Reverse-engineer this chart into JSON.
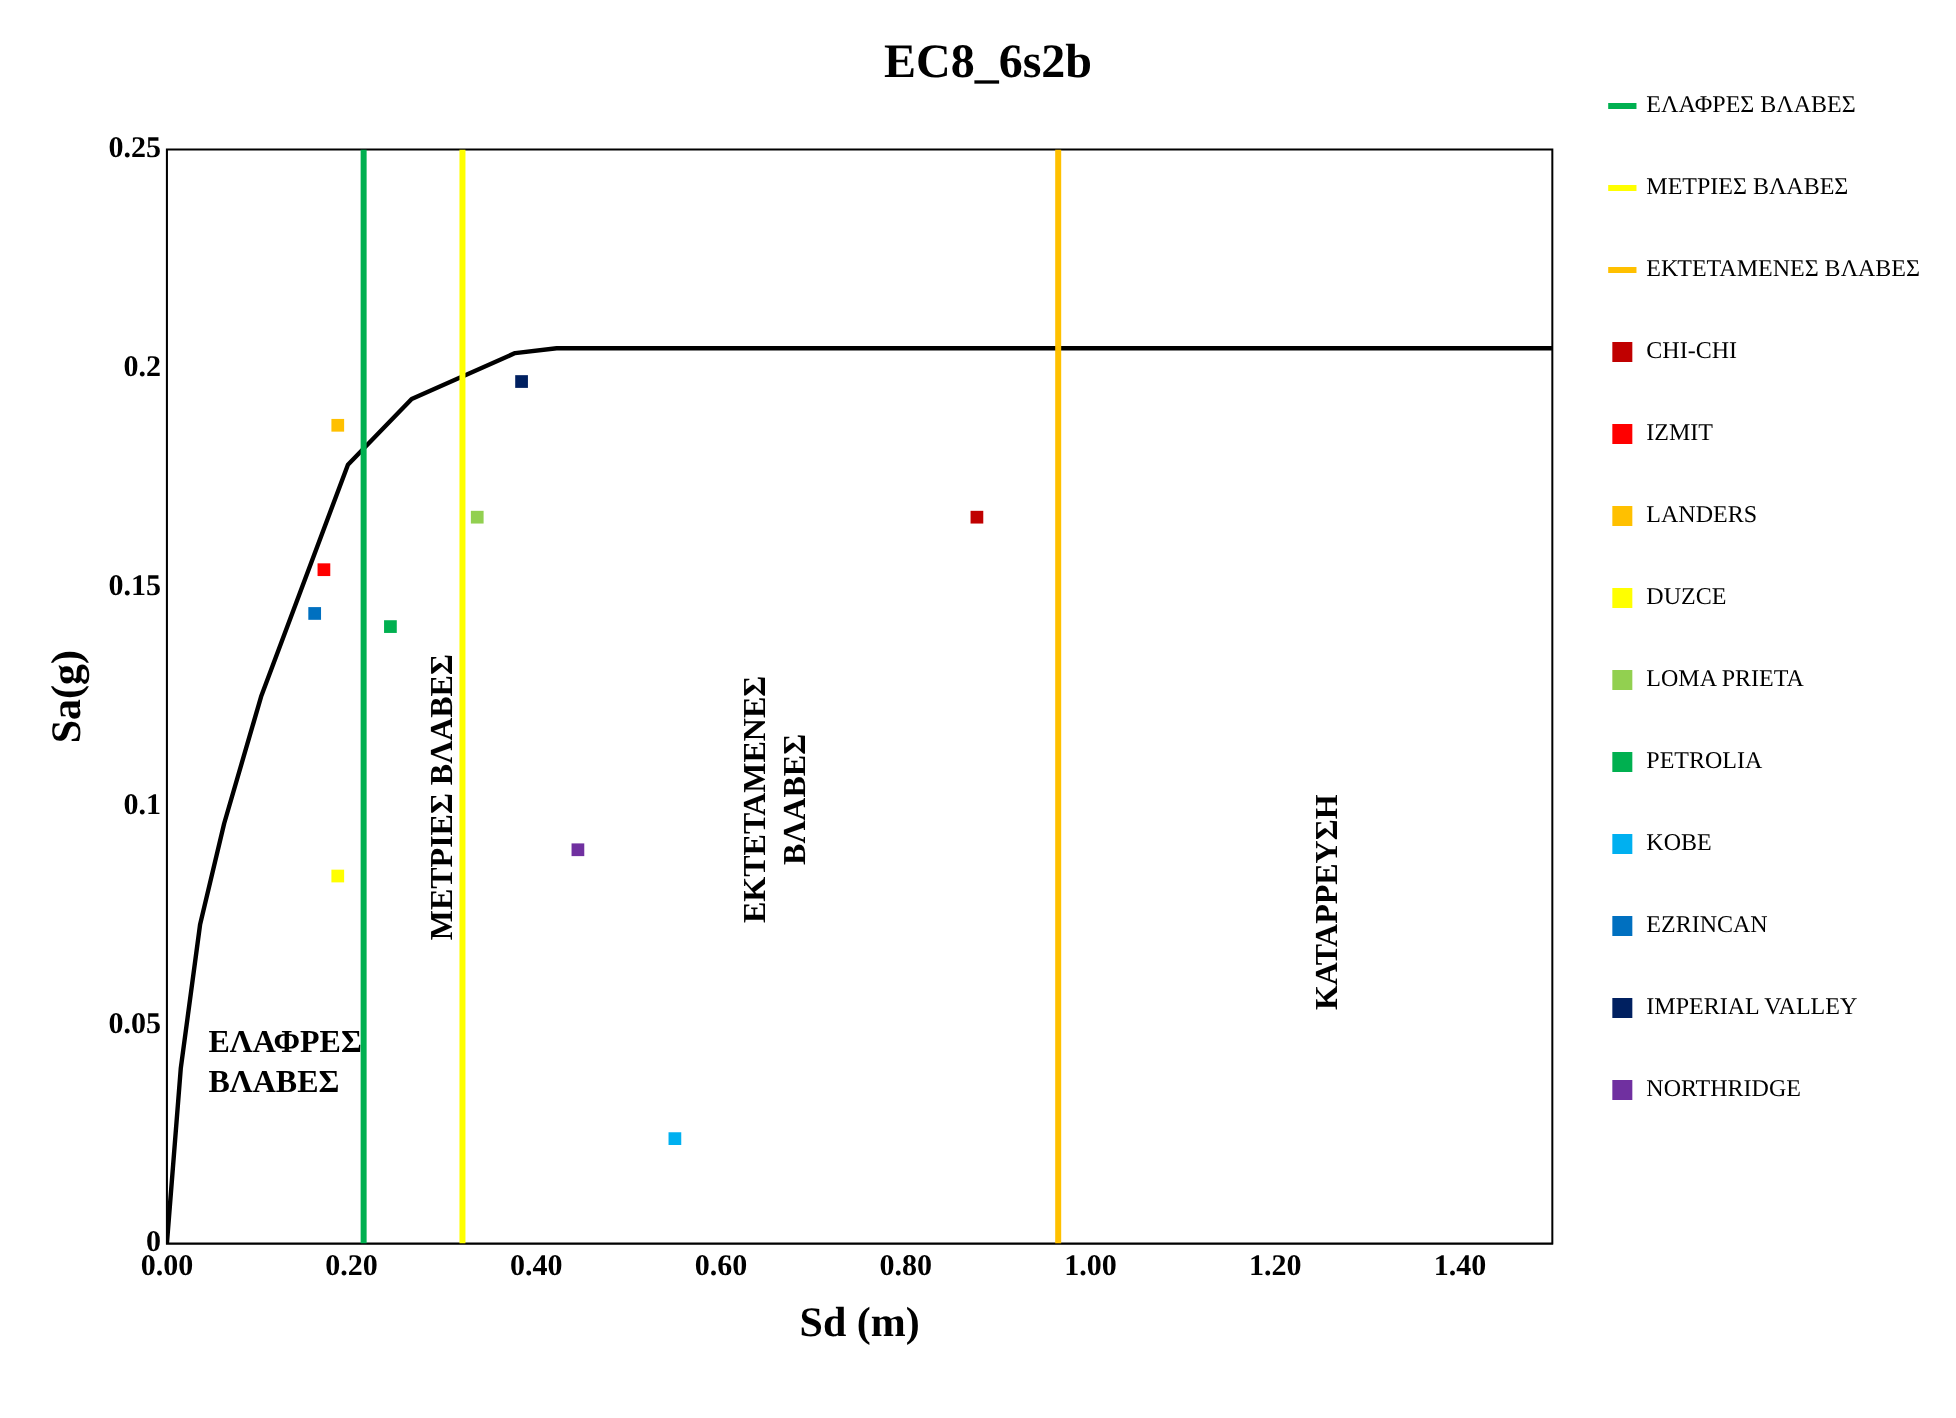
{
  "chart_data": {
    "type": "scatter",
    "title": "EC8_6s2b",
    "xlabel": "Sd (m)",
    "ylabel": "Sa(g)",
    "xlim": [
      0,
      1.5
    ],
    "ylim": [
      0,
      0.25
    ],
    "xticks": [
      {
        "value": 0,
        "label": "0.00"
      },
      {
        "value": 0.2,
        "label": "0.20"
      },
      {
        "value": 0.4,
        "label": "0.40"
      },
      {
        "value": 0.6,
        "label": "0.60"
      },
      {
        "value": 0.8,
        "label": "0.80"
      },
      {
        "value": 1,
        "label": "1.00"
      },
      {
        "value": 1.2,
        "label": "1.20"
      },
      {
        "value": 1.4,
        "label": "1.40"
      }
    ],
    "yticks": [
      0,
      0.05,
      0.1,
      0.15,
      0.2,
      0.25
    ],
    "grid": false,
    "legend": "right",
    "marker": "square",
    "annotations": [
      "ΕΛΑΦΡΕΣ\nΒΛΑΒΕΣ",
      "ΜΕΤΡΙΕΣ ΒΛΑΒΕΣ",
      "ΕΚΤΕΤΑΜΕΝΕΣ\nΒΛΑΒΕΣ",
      "ΚΑΤΑΡΡΕΥΣΗ"
    ],
    "series": [
      {
        "type": "line",
        "marker": "none",
        "name": "ΕΛΑΦΡΕΣ ΒΛΑΒΕΣ",
        "color": "#00b050",
        "x": [
          0.213,
          0.213
        ],
        "values": [
          0,
          0.25
        ]
      },
      {
        "type": "line",
        "marker": "none",
        "name": "ΜΕΤΡΙΕΣ ΒΛΑΒΕΣ",
        "color": "#ffff00",
        "x": [
          0.32,
          0.32
        ],
        "values": [
          0,
          0.25
        ]
      },
      {
        "type": "line",
        "marker": "none",
        "name": "ΕΚΤΕΤΑΜΕΝΕΣ ΒΛΑΒΕΣ",
        "color": "#ffc000",
        "x": [
          0.965,
          0.965
        ],
        "values": [
          0,
          0.25
        ]
      },
      {
        "type": "line",
        "marker": "none",
        "color": "#000000",
        "x": [
          0,
          0.015,
          0.036,
          0.062,
          0.102,
          0.196,
          0.265,
          0.377,
          0.422,
          1.5
        ],
        "values": [
          0,
          0.04,
          0.073,
          0.096,
          0.125,
          0.178,
          0.193,
          0.2035,
          0.2046,
          0.2046
        ]
      },
      {
        "name": "CHI-CHI",
        "color": "#c00000",
        "x": [
          0.877
        ],
        "values": [
          0.166
        ]
      },
      {
        "name": "IZMIT",
        "color": "#ff0000",
        "x": [
          0.17
        ],
        "values": [
          0.154
        ]
      },
      {
        "name": "LANDERS",
        "color": "#ffc000",
        "x": [
          0.185
        ],
        "values": [
          0.187
        ]
      },
      {
        "name": "DUZCE",
        "color": "#ffff00",
        "x": [
          0.185
        ],
        "values": [
          0.084
        ]
      },
      {
        "name": "LOMA PRIETA",
        "color": "#92d050",
        "x": [
          0.336
        ],
        "values": [
          0.166
        ]
      },
      {
        "name": "PETROLIA",
        "color": "#00b050",
        "x": [
          0.242
        ],
        "values": [
          0.141
        ]
      },
      {
        "name": "KOBE",
        "color": "#00b0f0",
        "x": [
          0.55
        ],
        "values": [
          0.024
        ]
      },
      {
        "name": "EZRINCAN",
        "color": "#0070c0",
        "x": [
          0.16
        ],
        "values": [
          0.144
        ]
      },
      {
        "name": "IMPERIAL VALLEY",
        "color": "#002060",
        "x": [
          0.384
        ],
        "values": [
          0.197
        ]
      },
      {
        "name": "NORTHRIDGE",
        "color": "#7030a0",
        "x": [
          0.445
        ],
        "values": [
          0.09
        ]
      }
    ]
  }
}
